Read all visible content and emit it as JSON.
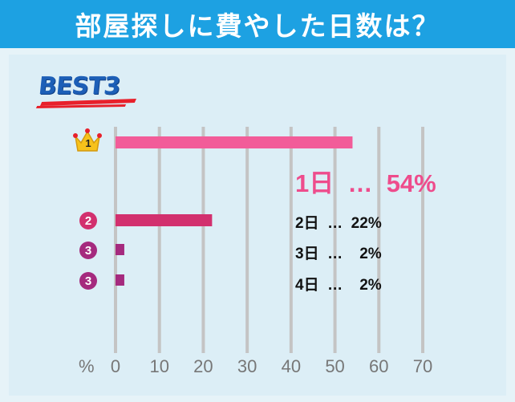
{
  "header": {
    "title": "部屋探しに費やした日数は？"
  },
  "badge": {
    "label": "BEST3"
  },
  "colors": {
    "header": "#1da1e2",
    "rank1": "#f25c99",
    "rank2": "#d2306e",
    "rank3": "#a52a7e",
    "grid": "#c4c4c4"
  },
  "chart_data": {
    "type": "bar",
    "orientation": "horizontal",
    "unit": "%",
    "xlim": [
      0,
      70
    ],
    "xticks": [
      "0",
      "10",
      "20",
      "30",
      "40",
      "50",
      "60",
      "70"
    ],
    "grid": true,
    "bars": [
      {
        "rank": "1",
        "value": 54,
        "label": "1日  …  54%"
      },
      {
        "rank": "2",
        "value": 22,
        "label": "2日  …  22%"
      },
      {
        "rank": "3",
        "value": 2,
        "label": "3日  …    2%"
      },
      {
        "rank": "3",
        "value": 2,
        "label": "4日  …    2%"
      }
    ]
  }
}
